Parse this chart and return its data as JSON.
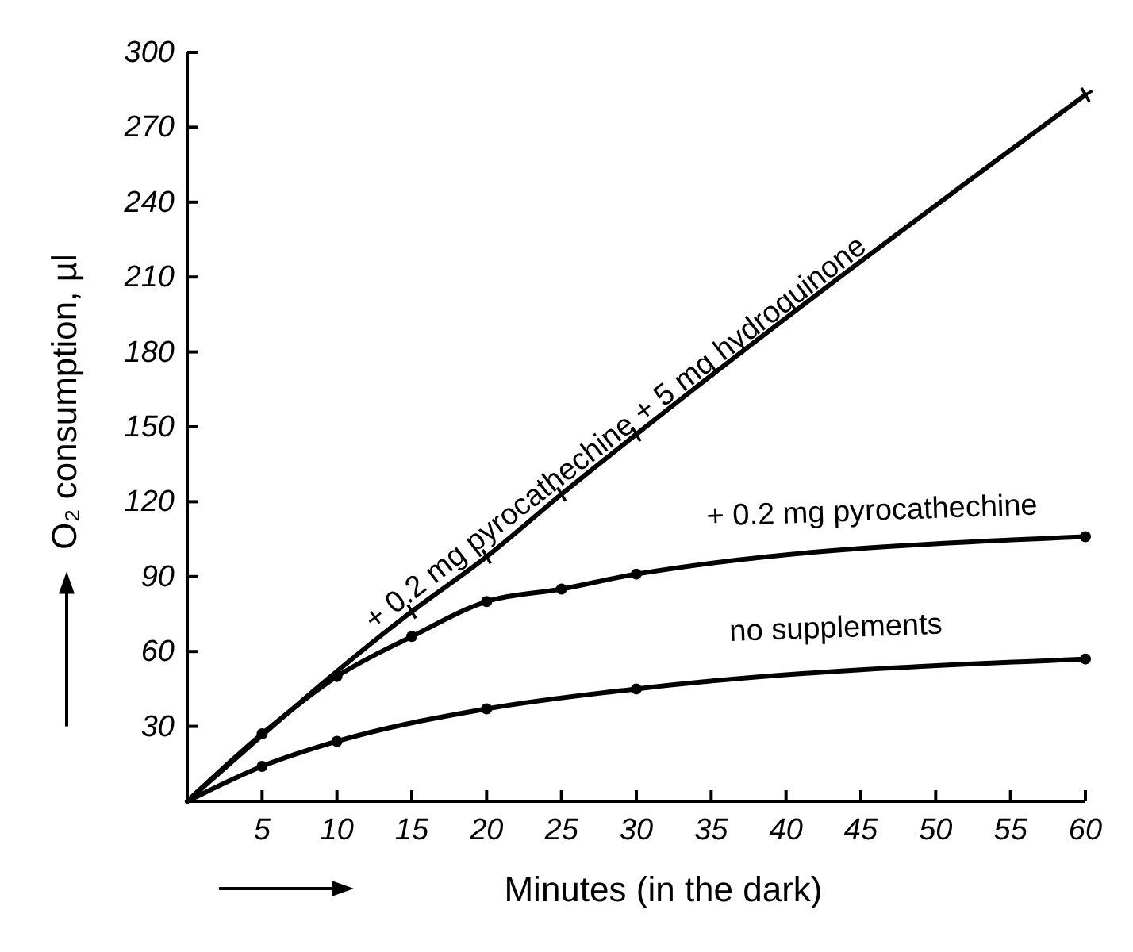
{
  "chart_data": {
    "type": "line",
    "xlabel": "Minutes (in the dark)",
    "ylabel": "O₂ consumption, µl",
    "xlim": [
      0,
      60
    ],
    "ylim": [
      0,
      300
    ],
    "xticks": [
      5,
      10,
      15,
      20,
      25,
      30,
      35,
      40,
      45,
      50,
      55,
      60
    ],
    "yticks": [
      30,
      60,
      90,
      120,
      150,
      180,
      210,
      240,
      270,
      300
    ],
    "grid": false,
    "line_style": "solid",
    "series": [
      {
        "name": "+ 0.2 mg pyrocathechine + 5 mg hydroquinone",
        "color": "#000000",
        "marker": "cross",
        "x": [
          0,
          15,
          20,
          25,
          30,
          60
        ],
        "values": [
          0,
          76,
          98,
          123,
          147,
          283
        ]
      },
      {
        "name": "+ 0.2 mg pyrocathechine",
        "color": "#000000",
        "marker": "circle",
        "x": [
          0,
          5,
          10,
          15,
          20,
          25,
          30,
          60
        ],
        "values": [
          0,
          27,
          50,
          66,
          80,
          85,
          91,
          106
        ]
      },
      {
        "name": "no supplements",
        "color": "#000000",
        "marker": "circle",
        "x": [
          0,
          5,
          10,
          20,
          30,
          60
        ],
        "values": [
          0,
          14,
          24,
          37,
          45,
          57
        ]
      }
    ]
  }
}
